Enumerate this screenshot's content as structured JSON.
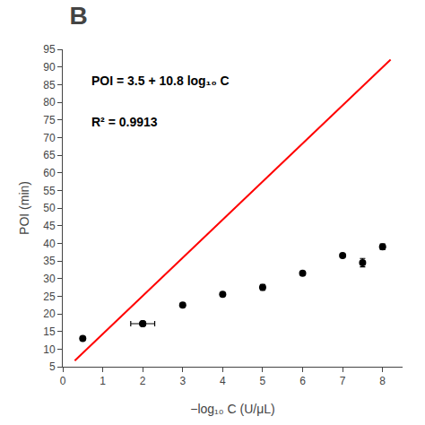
{
  "chart_data": {
    "type": "scatter",
    "title": "B",
    "x_label": "−log₁₀ C (U/μL)",
    "y_label": "POI (min)",
    "annotations": [
      "POI = 3.5 + 10.8 log₁₀ C",
      "R² = 0.9913"
    ],
    "xlim": [
      0,
      8.5
    ],
    "ylim": [
      5,
      95
    ],
    "xticks": [
      0,
      1,
      2,
      3,
      4,
      5,
      6,
      7,
      8
    ],
    "yticks": [
      5,
      10,
      15,
      20,
      25,
      30,
      35,
      40,
      45,
      50,
      55,
      60,
      65,
      70,
      75,
      80,
      85,
      90,
      95
    ],
    "grid": false,
    "series": [
      {
        "type": "line",
        "color": "#FF0000",
        "line_style": "solid",
        "x": [
          0.3,
          8.2
        ],
        "values": [
          6.74,
          92.06
        ]
      },
      {
        "type": "scatter",
        "color": "black",
        "marker": "circle",
        "x": [
          0.5,
          2.0,
          3.0,
          4.0,
          5.0,
          6.0,
          7.0,
          7.5,
          8.0
        ],
        "values": [
          13.0,
          17.2,
          22.5,
          25.5,
          27.5,
          31.5,
          36.5,
          34.5,
          39.0
        ],
        "y_err": [
          0.5,
          0.6,
          0.5,
          0.4,
          0.8,
          0.5,
          0.6,
          1.2,
          0.8
        ],
        "x_err": [
          null,
          0.3,
          null,
          null,
          null,
          null,
          null,
          null,
          null
        ]
      }
    ]
  }
}
